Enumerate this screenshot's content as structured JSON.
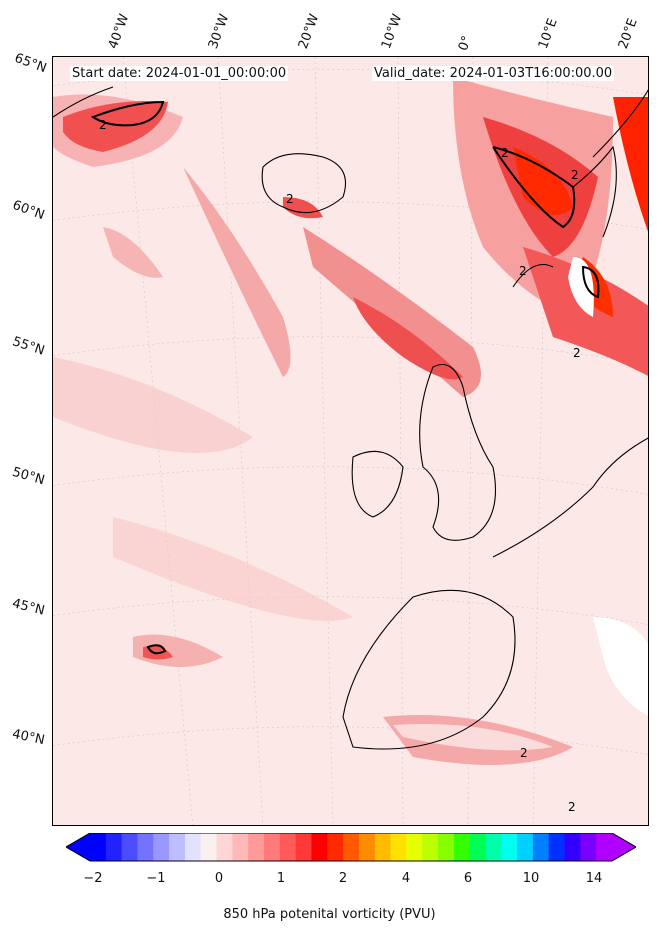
{
  "header": {
    "start_date": "Start date: 2024-01-01_00:00:00",
    "valid_date": "Valid_date: 2024-01-03T16:00:00.00"
  },
  "longitude_labels": [
    "40°W",
    "30°W",
    "20°W",
    "10°W",
    "0°",
    "10°E",
    "20°E"
  ],
  "latitude_labels": [
    "65°N",
    "60°N",
    "55°N",
    "50°N",
    "45°N",
    "40°N"
  ],
  "contour_labels": [
    "2",
    "2",
    "2",
    "2",
    "2",
    "2",
    "2",
    "2"
  ],
  "colorbar": {
    "title": "850 hPa potenital vorticity (PVU)",
    "ticks": [
      "−2",
      "−1",
      "0",
      "1",
      "2",
      "4",
      "6",
      "10",
      "14"
    ],
    "colors": [
      "#0000ff",
      "#2222ff",
      "#4c4cff",
      "#7373ff",
      "#9898ff",
      "#bdbdff",
      "#e2e2ff",
      "#fbf0f0",
      "#ffd6d6",
      "#ffb9b9",
      "#ff9a9a",
      "#ff7b7b",
      "#ff5a5a",
      "#ff3838",
      "#ff0000",
      "#ff2a00",
      "#ff5a00",
      "#ff8c00",
      "#ffbb00",
      "#ffe000",
      "#e6ff00",
      "#bbff00",
      "#88ff00",
      "#33ff00",
      "#00ff55",
      "#00ffaa",
      "#00ffee",
      "#00d0ff",
      "#0080ff",
      "#0030ff",
      "#3300ff",
      "#7a00ff",
      "#b000ff"
    ],
    "under_color": "#0000ff",
    "over_color": "#b000ff"
  },
  "colors": {
    "background_field": "#fde8e8",
    "light_field": "#fbd0d0",
    "medium_field": "#f6a6a6",
    "strong_field": "#f04040",
    "peak_field": "#ff2200",
    "coast": "#000000"
  }
}
